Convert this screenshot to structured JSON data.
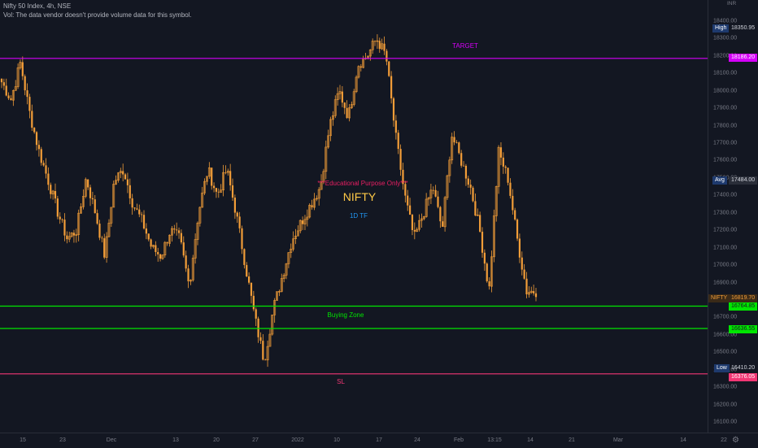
{
  "header": {
    "symbol_line": "Nifty 50 Index, 4h, NSE",
    "vol_line": "Vol: The data vendor doesn't provide volume data for this symbol."
  },
  "currency": "INR",
  "annotations": {
    "target": "TARGET",
    "buying_zone": "Buying Zone",
    "sl": "SL",
    "disclaimer": "***Educational Purpose Only***",
    "symbol_big": "NIFTY",
    "timeframe": "1D TF"
  },
  "colors": {
    "background": "#131722",
    "candle": "#f29d38",
    "target_line": "#d500f9",
    "buying_zone_line": "#00e600",
    "sl_line": "#f23674",
    "disclaimer": "#e91e63",
    "symbol_big": "#ffc947",
    "timeframe": "#2196f3"
  },
  "price_tags": {
    "high_label": "High",
    "high": "18350.95",
    "target": "18186.20",
    "avg_label": "Avg",
    "avg": "17484.00",
    "nifty_label": "NIFTY",
    "nifty": "16819.70",
    "zone_top": "16764.85",
    "zone_bottom": "16636.55",
    "low_label": "Low",
    "low": "16410.20",
    "sl": "16376.05"
  },
  "chart_data": {
    "type": "candlestick",
    "title": "Nifty 50 Index, 4h, NSE",
    "ylim": [
      16000,
      18500
    ],
    "y_ticks": [
      18400,
      18300,
      18200,
      18100,
      18000,
      17900,
      17800,
      17700,
      17600,
      17500,
      17400,
      17300,
      17200,
      17100,
      17000,
      16900,
      16800,
      16700,
      16600,
      16500,
      16400,
      16300,
      16200,
      16100
    ],
    "x_tick_labels": [
      "15",
      "23",
      "Dec",
      "13",
      "20",
      "27",
      "2022",
      "10",
      "17",
      "24",
      "Feb",
      "13:15",
      "14",
      "21",
      "Mar",
      "14",
      "22"
    ],
    "horizontal_levels": [
      {
        "name": "TARGET",
        "value": 18186.2
      },
      {
        "name": "Buying Zone top",
        "value": 16764.85
      },
      {
        "name": "Buying Zone bottom",
        "value": 16636.55
      },
      {
        "name": "SL",
        "value": 16376.05
      }
    ],
    "close_path": [
      18050,
      17950,
      18160,
      17870,
      17650,
      17480,
      17300,
      17150,
      17200,
      17500,
      17300,
      17050,
      17480,
      17550,
      17350,
      17250,
      17100,
      17050,
      17200,
      17150,
      16880,
      17300,
      17550,
      17400,
      17550,
      17300,
      17000,
      16700,
      16450,
      16750,
      16950,
      17150,
      17250,
      17350,
      17450,
      17800,
      18000,
      17850,
      18150,
      18200,
      18300,
      18200,
      17750,
      17400,
      17150,
      17300,
      17450,
      17200,
      17750,
      17600,
      17450,
      17200,
      16850,
      17650,
      17500,
      17150,
      16850,
      16850
    ]
  }
}
